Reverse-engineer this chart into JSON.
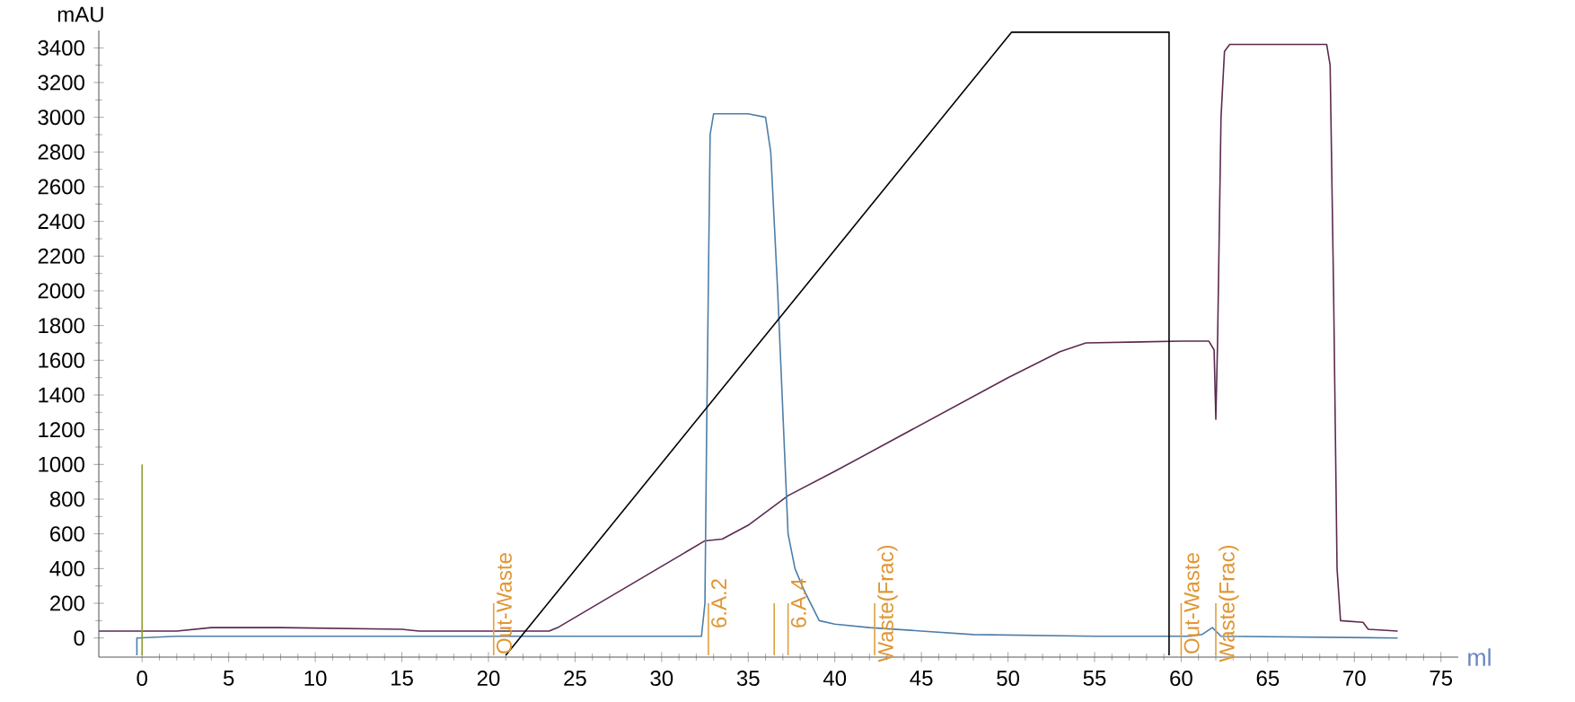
{
  "chart_data": {
    "type": "line",
    "xlabel": "ml",
    "ylabel": "mAU",
    "xlim": [
      -2.5,
      76
    ],
    "ylim": [
      -110,
      3500
    ],
    "xticks": [
      0,
      5,
      10,
      15,
      20,
      25,
      30,
      35,
      40,
      45,
      50,
      55,
      60,
      65,
      70,
      75
    ],
    "yticks": [
      0,
      200,
      400,
      600,
      800,
      1000,
      1200,
      1400,
      1600,
      1800,
      2000,
      2200,
      2400,
      2600,
      2800,
      3000,
      3200,
      3400
    ],
    "grid": false,
    "marker": "none",
    "line_style": "solid",
    "series": [
      {
        "color": "#5c2a50",
        "x": [
          -2.5,
          2,
          4,
          8,
          15,
          16,
          23.5,
          24,
          32.5,
          33.5,
          35,
          37.3,
          40,
          50,
          53,
          54.5,
          60,
          61.6,
          61.9,
          62.0,
          62.1,
          62.3,
          62.5,
          62.8,
          68.4,
          68.6,
          68.8,
          69.0,
          69.2,
          70.5,
          70.8,
          72.5
        ],
        "values": [
          40,
          40,
          60,
          60,
          50,
          40,
          40,
          60,
          560,
          570,
          650,
          820,
          960,
          1500,
          1650,
          1700,
          1710,
          1710,
          1660,
          1260,
          1700,
          3000,
          3380,
          3420,
          3420,
          3300,
          2000,
          400,
          100,
          90,
          50,
          40
        ]
      },
      {
        "color": "#4d7ea8",
        "x": [
          -0.3,
          -0.3,
          2,
          32.3,
          32.5,
          32.6,
          32.8,
          33,
          35,
          36,
          36.3,
          36.7,
          37,
          37.3,
          37.7,
          38.2,
          38.7,
          39.1,
          40,
          42,
          45,
          48,
          55,
          59,
          60.5,
          61.2,
          61.8,
          62.3,
          72.5
        ],
        "values": [
          -100,
          0,
          10,
          10,
          200,
          1200,
          2900,
          3020,
          3020,
          3000,
          2800,
          2000,
          1300,
          600,
          400,
          280,
          180,
          100,
          80,
          60,
          40,
          20,
          10,
          10,
          10,
          20,
          60,
          10,
          0
        ]
      },
      {
        "color": "#000000",
        "x": [
          21,
          50.2,
          59.3,
          59.3
        ],
        "values": [
          -100,
          3490,
          3490,
          -100
        ]
      },
      {
        "color": "#8c9c2c",
        "x": [
          0,
          0
        ],
        "values": [
          -100,
          1000
        ]
      },
      {
        "color": "#e0a040",
        "x": [
          20.3,
          20.3,
          null,
          32.7,
          32.7,
          null,
          36.5,
          36.5,
          null,
          37.3,
          37.3,
          null,
          42.3,
          42.3,
          null,
          60,
          60,
          null,
          62,
          62
        ],
        "values": [
          -100,
          200,
          null,
          -100,
          200,
          null,
          -100,
          200,
          null,
          -100,
          200,
          null,
          -100,
          200,
          null,
          -100,
          200,
          null,
          -100,
          200
        ]
      }
    ],
    "annotations": [
      {
        "text": "Out-Waste",
        "x": 20.3,
        "y": 200
      },
      {
        "text": "6.A.2",
        "x": 32.7,
        "y": 200
      },
      {
        "text": "6.A.4",
        "x": 37.3,
        "y": 200
      },
      {
        "text": "Waste(Frac)",
        "x": 42.3,
        "y": 200
      },
      {
        "text": "Out-Waste",
        "x": 60,
        "y": 200
      },
      {
        "text": "Waste(Frac)",
        "x": 62,
        "y": 200
      }
    ]
  }
}
